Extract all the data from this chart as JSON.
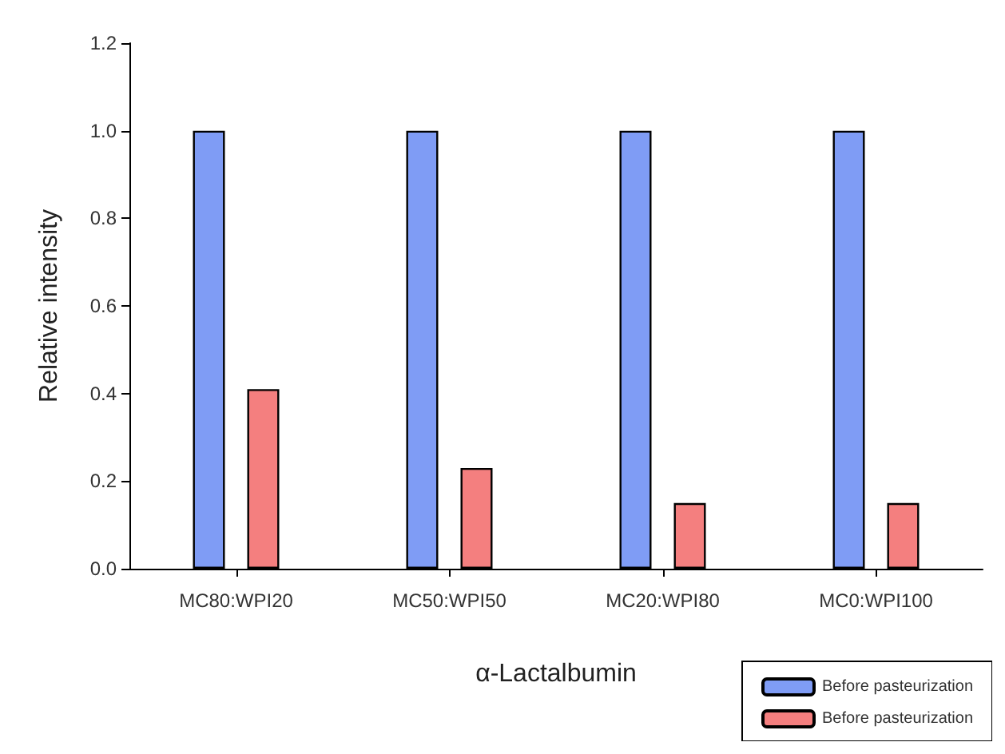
{
  "chart_data": {
    "type": "bar",
    "xlabel": "α-Lactalbumin",
    "ylabel": "Relative intensity",
    "categories": [
      "MC80:WPI20",
      "MC50:WPI50",
      "MC20:WPI80",
      "MC0:WPI100"
    ],
    "series": [
      {
        "name": "Before pasteurization",
        "color": "#7f9cf5",
        "values": [
          1.0,
          1.0,
          1.0,
          1.0
        ]
      },
      {
        "name": "Before pasteurization",
        "color": "#f47f7f",
        "values": [
          0.41,
          0.23,
          0.15,
          0.15
        ]
      }
    ],
    "ylim": [
      0,
      1.2
    ],
    "yticks": [
      {
        "value": 0,
        "label": "0.0"
      },
      {
        "value": 0.2,
        "label": "0.2"
      },
      {
        "value": 0.4,
        "label": "0.4"
      },
      {
        "value": 0.6,
        "label": "0.6"
      },
      {
        "value": 0.8,
        "label": "0.8"
      },
      {
        "value": 1,
        "label": "1.0"
      },
      {
        "value": 1.2,
        "label": "1.2"
      }
    ],
    "grid": false,
    "legend": "bottom right"
  }
}
